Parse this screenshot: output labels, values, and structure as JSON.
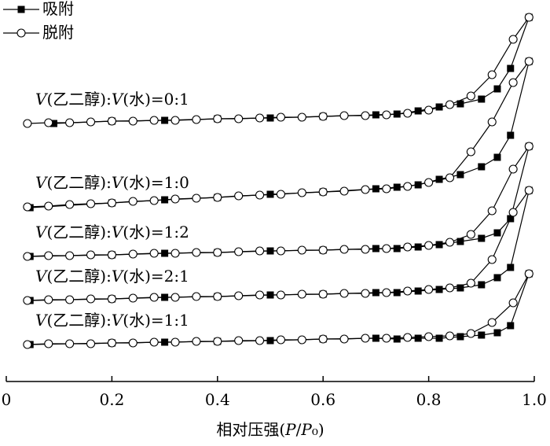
{
  "chart_data": {
    "type": "line",
    "xlabel": "相对压强(P/P₀)",
    "xlim": [
      0,
      1
    ],
    "xticks": [
      0,
      0.2,
      0.4,
      0.6,
      0.8,
      {
        "value": 1,
        "label": "1.0"
      }
    ],
    "ylim": [
      0,
      475
    ],
    "curve_labels": [
      "V(乙二醇):V(水)=0:1",
      "V(乙二醇):V(水)=1:0",
      "V(乙二醇):V(水)=1:2",
      "V(乙二醇):V(水)=2:1",
      "V(乙二醇):V(水)=1:1"
    ],
    "series": [
      {
        "name": "吸附",
        "color": "#000000",
        "marker": "square",
        "curves": [
          {
            "x": [
              0.09,
              0.2,
              0.3,
              0.4,
              0.5,
              0.6,
              0.7,
              0.74,
              0.78,
              0.82,
              0.86,
              0.9,
              0.93,
              0.955,
              0.99
            ],
            "values": [
              328,
              331,
              332,
              334,
              335,
              337,
              339,
              340,
              344,
              349,
              353,
              359,
              372,
              398,
              463
            ]
          },
          {
            "x": [
              0.045,
              0.2,
              0.3,
              0.4,
              0.5,
              0.6,
              0.7,
              0.74,
              0.78,
              0.82,
              0.86,
              0.9,
              0.93,
              0.955,
              0.99
            ],
            "values": [
              221,
              227,
              231,
              234,
              238,
              241,
              245,
              247,
              250,
              257,
              263,
              273,
              285,
              313,
              407
            ]
          },
          {
            "x": [
              0.045,
              0.2,
              0.3,
              0.4,
              0.5,
              0.6,
              0.7,
              0.74,
              0.78,
              0.82,
              0.86,
              0.9,
              0.93,
              0.955,
              0.99
            ],
            "values": [
              159,
              161,
              163,
              164,
              166,
              167,
              169,
              169,
              171,
              174,
              178,
              182,
              189,
              207,
              299
            ]
          },
          {
            "x": [
              0.045,
              0.2,
              0.3,
              0.4,
              0.5,
              0.6,
              0.7,
              0.74,
              0.78,
              0.82,
              0.86,
              0.9,
              0.93,
              0.955,
              0.99
            ],
            "values": [
              103,
              105,
              107,
              108,
              110,
              111,
              113,
              113,
              115,
              117,
              119,
              123,
              132,
              145,
              243
            ]
          },
          {
            "x": [
              0.045,
              0.2,
              0.3,
              0.4,
              0.5,
              0.6,
              0.7,
              0.74,
              0.78,
              0.82,
              0.86,
              0.9,
              0.93,
              0.955,
              0.99
            ],
            "values": [
              47,
              49,
              50,
              51,
              52,
              54,
              55,
              54,
              55,
              55,
              57,
              59,
              62,
              71,
              137
            ]
          }
        ]
      },
      {
        "name": "脱附",
        "color": "#000000",
        "marker": "circle",
        "curves": [
          {
            "x": [
              0.04,
              0.08,
              0.12,
              0.16,
              0.2,
              0.24,
              0.28,
              0.32,
              0.36,
              0.4,
              0.44,
              0.48,
              0.52,
              0.56,
              0.6,
              0.64,
              0.68,
              0.72,
              0.76,
              0.8,
              0.84,
              0.88,
              0.92,
              0.96,
              0.99
            ],
            "values": [
              328,
              329,
              329,
              330,
              331,
              331,
              332,
              332,
              333,
              334,
              334,
              335,
              336,
              336,
              337,
              338,
              338,
              339,
              341,
              345,
              352,
              363,
              390,
              435,
              463
            ]
          },
          {
            "x": [
              0.04,
              0.08,
              0.12,
              0.16,
              0.2,
              0.24,
              0.28,
              0.32,
              0.36,
              0.4,
              0.44,
              0.48,
              0.52,
              0.56,
              0.6,
              0.64,
              0.68,
              0.72,
              0.76,
              0.8,
              0.84,
              0.88,
              0.92,
              0.96,
              0.99
            ],
            "values": [
              222,
              223,
              225,
              226,
              227,
              229,
              230,
              232,
              233,
              234,
              236,
              237,
              238,
              240,
              241,
              242,
              244,
              245,
              248,
              253,
              259,
              292,
              330,
              380,
              407
            ]
          },
          {
            "x": [
              0.04,
              0.08,
              0.12,
              0.16,
              0.2,
              0.24,
              0.28,
              0.32,
              0.36,
              0.4,
              0.44,
              0.48,
              0.52,
              0.56,
              0.6,
              0.64,
              0.68,
              0.72,
              0.76,
              0.8,
              0.84,
              0.88,
              0.92,
              0.96,
              0.99
            ],
            "values": [
              159,
              160,
              160,
              161,
              161,
              162,
              163,
              163,
              164,
              164,
              165,
              166,
              166,
              167,
              167,
              168,
              168,
              169,
              171,
              173,
              177,
              187,
              217,
              270,
              299
            ]
          },
          {
            "x": [
              0.04,
              0.08,
              0.12,
              0.16,
              0.2,
              0.24,
              0.28,
              0.32,
              0.36,
              0.4,
              0.44,
              0.48,
              0.52,
              0.56,
              0.6,
              0.64,
              0.68,
              0.72,
              0.76,
              0.8,
              0.84,
              0.88,
              0.92,
              0.96,
              0.99
            ],
            "values": [
              103,
              104,
              104,
              105,
              105,
              106,
              107,
              107,
              108,
              108,
              109,
              110,
              110,
              111,
              111,
              112,
              112,
              113,
              115,
              117,
              119,
              125,
              155,
              215,
              243
            ]
          },
          {
            "x": [
              0.04,
              0.08,
              0.12,
              0.16,
              0.2,
              0.24,
              0.28,
              0.32,
              0.36,
              0.4,
              0.44,
              0.48,
              0.52,
              0.56,
              0.6,
              0.64,
              0.68,
              0.72,
              0.76,
              0.8,
              0.84,
              0.88,
              0.92,
              0.96,
              0.99
            ],
            "values": [
              47,
              48,
              48,
              48,
              49,
              49,
              50,
              50,
              51,
              51,
              52,
              52,
              53,
              53,
              54,
              54,
              55,
              55,
              56,
              57,
              58,
              61,
              75,
              100,
              137
            ]
          }
        ]
      }
    ]
  }
}
